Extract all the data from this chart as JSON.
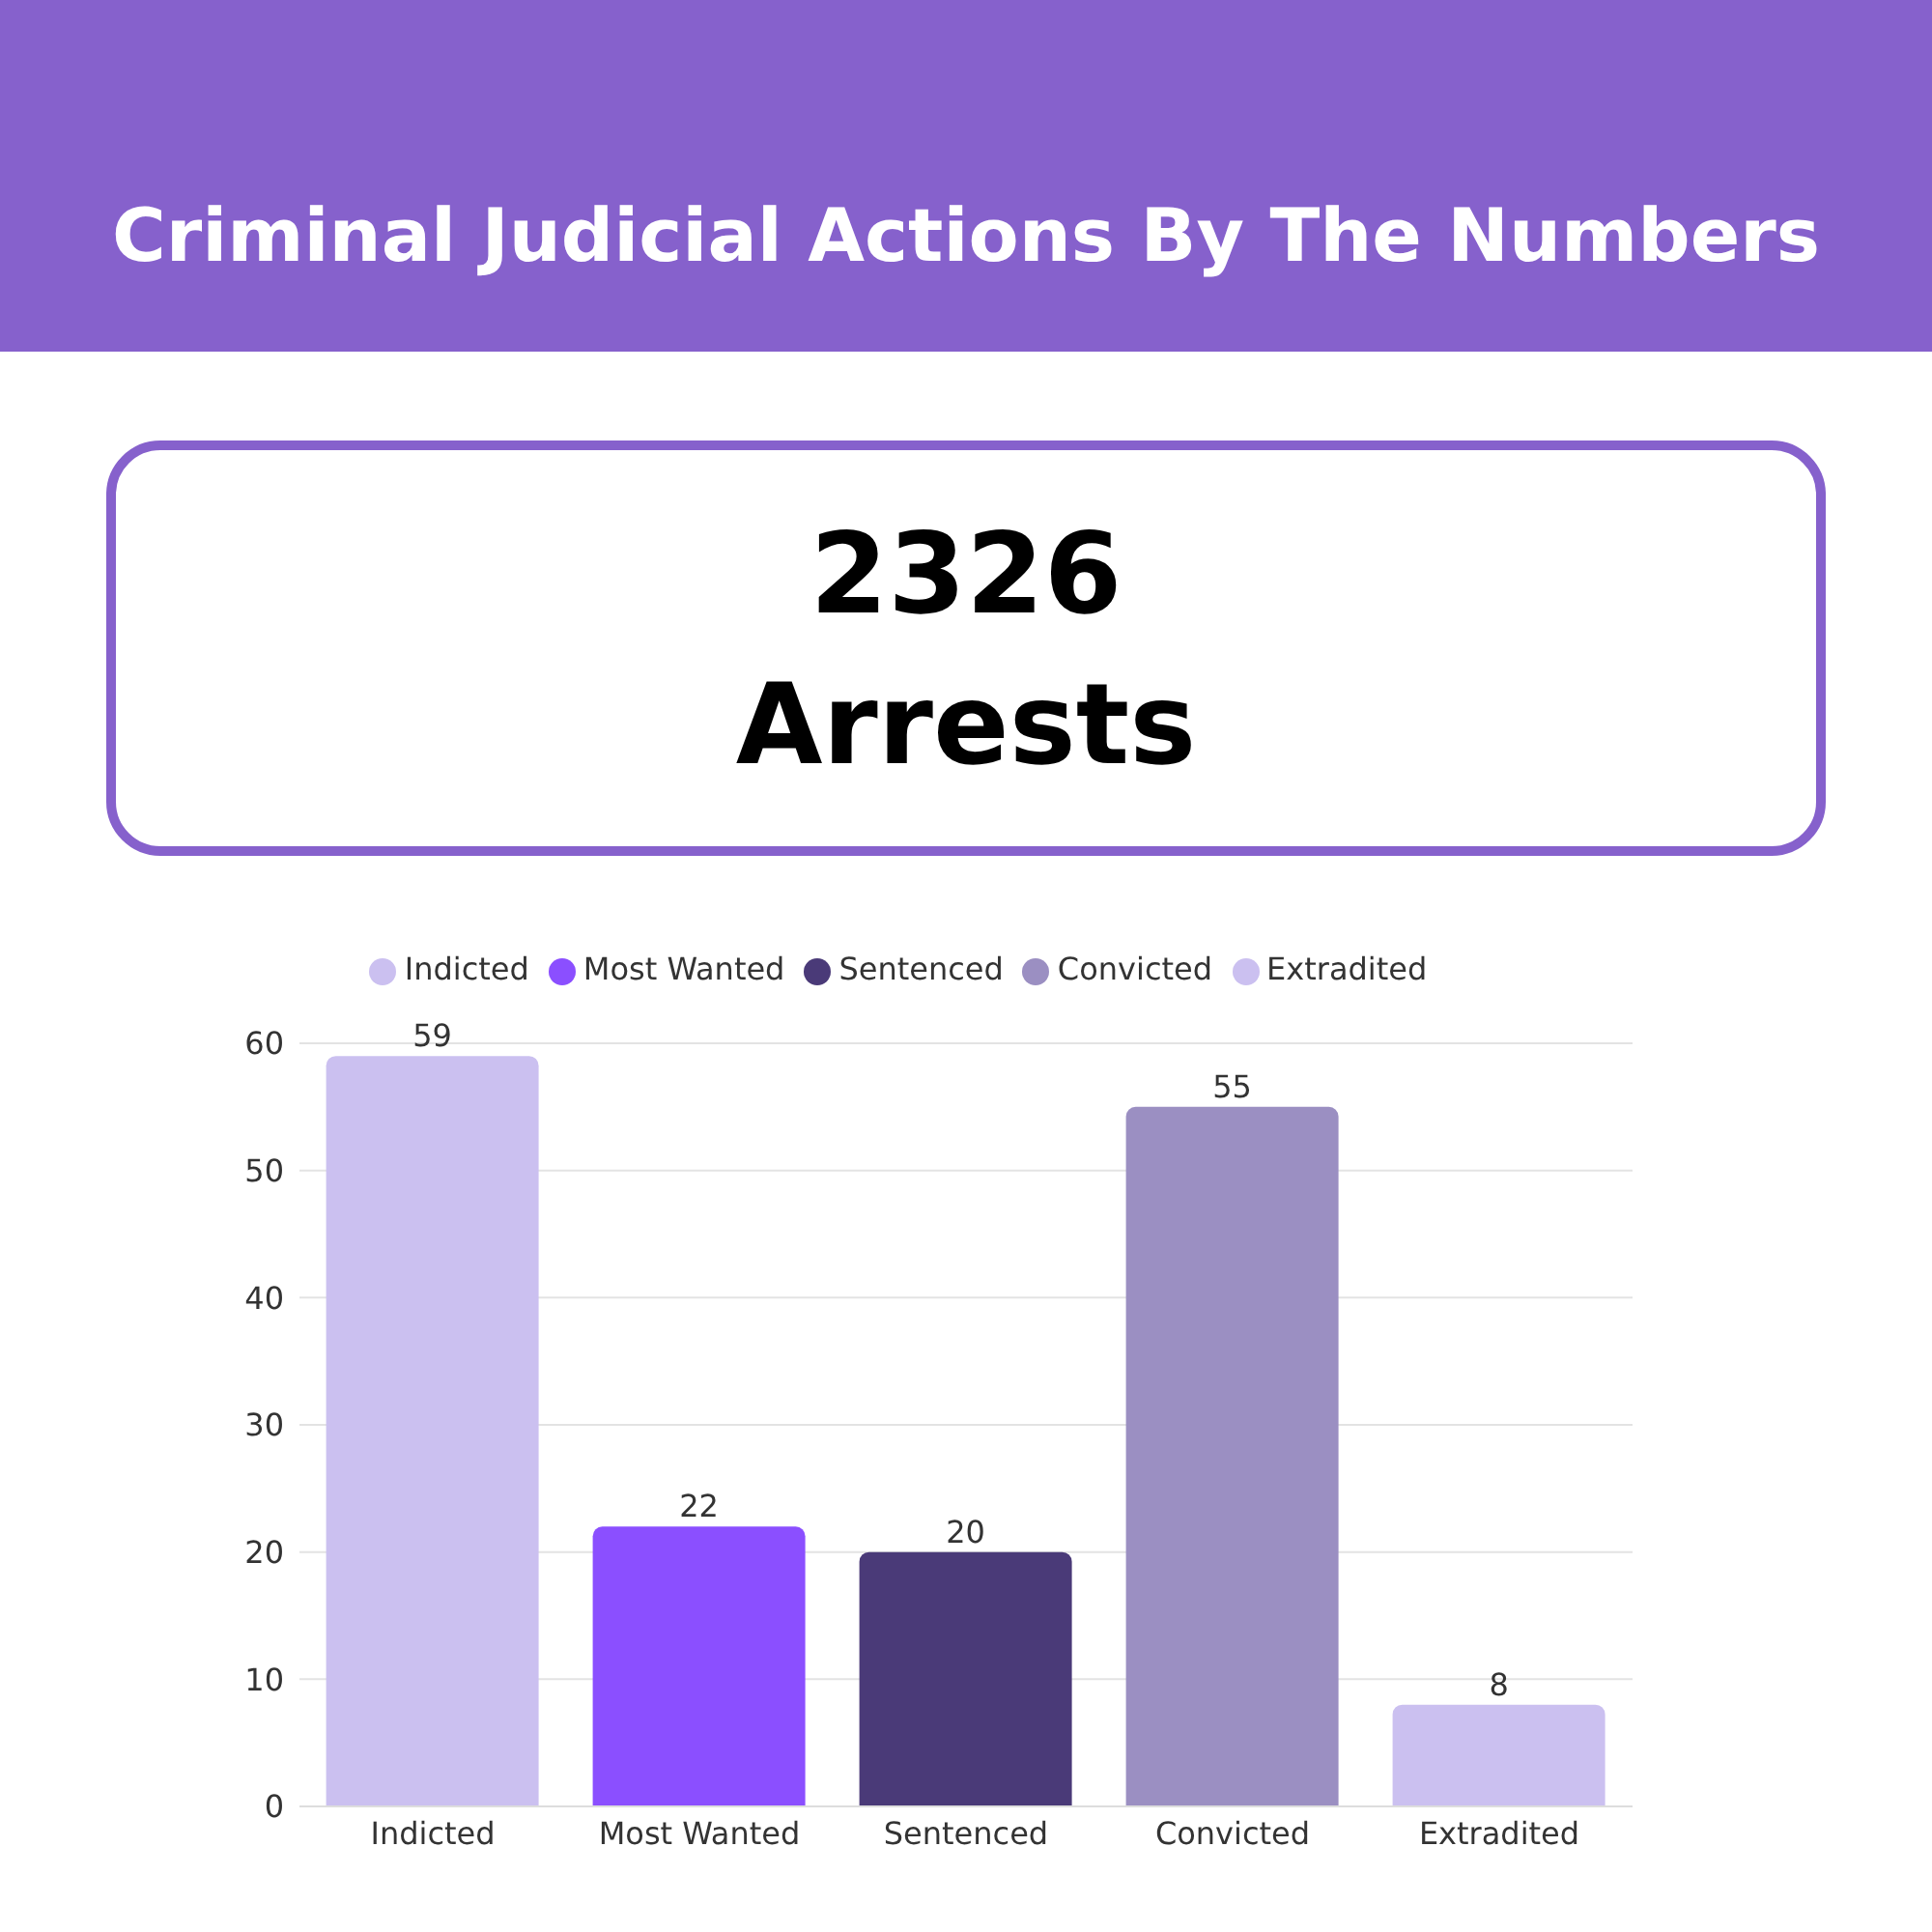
{
  "chart_data": [
    {
      "type": "other",
      "title": "Criminal Judicial Actions By The Numbers",
      "annotations": [
        "2326",
        "Arrests"
      ]
    },
    {
      "type": "bar",
      "categories": [
        "Indicted",
        "Most Wanted",
        "Sentenced",
        "Convicted",
        "Extradited"
      ],
      "series": [
        {
          "name": "Indicted",
          "color": "#cbc0f0",
          "values": [
            59,
            null,
            null,
            null,
            null
          ]
        },
        {
          "name": "Most Wanted",
          "color": "#8b4fff",
          "values": [
            null,
            22,
            null,
            null,
            null
          ]
        },
        {
          "name": "Sentenced",
          "color": "#4a3a78",
          "values": [
            null,
            null,
            20,
            null,
            null
          ]
        },
        {
          "name": "Convicted",
          "color": "#9b8fc2",
          "values": [
            null,
            null,
            null,
            55,
            null
          ]
        },
        {
          "name": "Extradited",
          "color": "#cbc0f0",
          "values": [
            null,
            null,
            null,
            null,
            8
          ]
        }
      ],
      "ylim": [
        0,
        60
      ],
      "yticks": [
        0,
        10,
        20,
        30,
        40,
        50,
        60
      ],
      "grid": "y",
      "legend": "top",
      "data_labels": true
    }
  ]
}
